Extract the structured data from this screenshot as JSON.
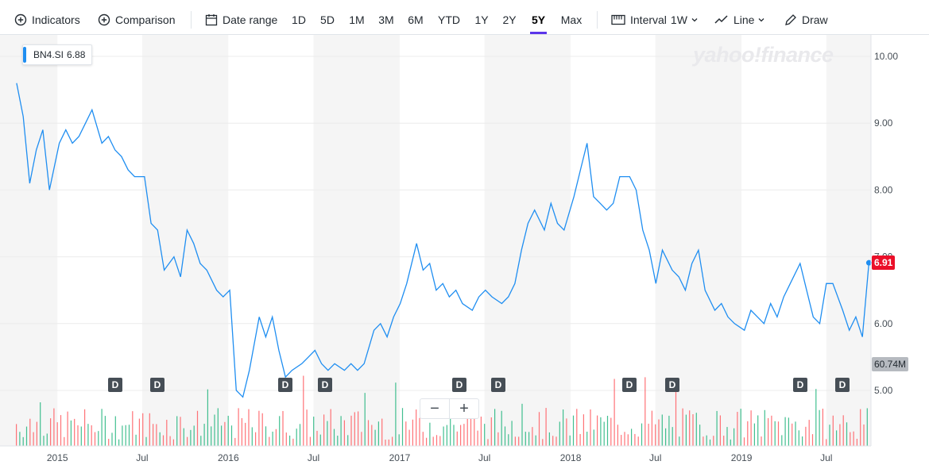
{
  "toolbar": {
    "indicators": "Indicators",
    "comparison": "Comparison",
    "date_range": "Date range",
    "ranges": [
      "1D",
      "5D",
      "1M",
      "3M",
      "6M",
      "YTD",
      "1Y",
      "2Y",
      "5Y",
      "Max"
    ],
    "active_range": "5Y",
    "interval_label": "Interval",
    "interval_value": "1W",
    "line": "Line",
    "draw": "Draw"
  },
  "legend": {
    "symbol": "BN4.SI",
    "value": "6.88"
  },
  "watermark": "yahoo!finance",
  "last_price_badge": "6.91",
  "volume_badge": "60.74M",
  "dividend_marker": "D",
  "zoom": {
    "minus": "−",
    "plus": "+"
  },
  "colors": {
    "line": "#1f8ef1",
    "up_volume": "#21b47d",
    "down_volume": "#ff5a5f",
    "last_badge": "#eb0f29",
    "accent": "#5b35ea"
  },
  "chart_data": {
    "type": "line",
    "title": "",
    "series": [
      {
        "name": "BN4.SI",
        "x": [
          "2014-10-06",
          "2014-10-20",
          "2014-11-03",
          "2014-11-17",
          "2014-12-01",
          "2014-12-15",
          "2015-01-05",
          "2015-01-19",
          "2015-02-02",
          "2015-02-16",
          "2015-03-02",
          "2015-03-16",
          "2015-04-06",
          "2015-04-20",
          "2015-05-04",
          "2015-05-18",
          "2015-06-01",
          "2015-06-15",
          "2015-07-06",
          "2015-07-20",
          "2015-08-03",
          "2015-08-17",
          "2015-09-07",
          "2015-09-21",
          "2015-10-05",
          "2015-10-19",
          "2015-11-02",
          "2015-11-16",
          "2015-12-07",
          "2015-12-21",
          "2016-01-04",
          "2016-01-18",
          "2016-02-01",
          "2016-02-15",
          "2016-03-07",
          "2016-03-21",
          "2016-04-04",
          "2016-04-18",
          "2016-05-02",
          "2016-05-16",
          "2016-06-06",
          "2016-06-20",
          "2016-07-04",
          "2016-07-18",
          "2016-08-01",
          "2016-08-15",
          "2016-09-05",
          "2016-09-19",
          "2016-10-03",
          "2016-10-17",
          "2016-11-07",
          "2016-11-21",
          "2016-12-05",
          "2016-12-19",
          "2017-01-02",
          "2017-01-16",
          "2017-02-06",
          "2017-02-20",
          "2017-03-06",
          "2017-03-20",
          "2017-04-03",
          "2017-04-17",
          "2017-05-01",
          "2017-05-15",
          "2017-06-05",
          "2017-06-19",
          "2017-07-03",
          "2017-07-17",
          "2017-08-07",
          "2017-08-21",
          "2017-09-04",
          "2017-09-18",
          "2017-10-02",
          "2017-10-16",
          "2017-11-06",
          "2017-11-20",
          "2017-12-04",
          "2017-12-18",
          "2018-01-08",
          "2018-01-22",
          "2018-02-05",
          "2018-02-19",
          "2018-03-05",
          "2018-03-19",
          "2018-04-02",
          "2018-04-16",
          "2018-05-07",
          "2018-05-21",
          "2018-06-04",
          "2018-06-18",
          "2018-07-02",
          "2018-07-16",
          "2018-08-06",
          "2018-08-20",
          "2018-09-03",
          "2018-09-17",
          "2018-10-01",
          "2018-10-15",
          "2018-11-05",
          "2018-11-19",
          "2018-12-03",
          "2018-12-17",
          "2019-01-07",
          "2019-01-21",
          "2019-02-04",
          "2019-02-18",
          "2019-03-04",
          "2019-03-18",
          "2019-04-01",
          "2019-04-15",
          "2019-05-06",
          "2019-05-20",
          "2019-06-03",
          "2019-06-17",
          "2019-07-01",
          "2019-07-15",
          "2019-08-05",
          "2019-08-19",
          "2019-09-02",
          "2019-09-16",
          "2019-09-30"
        ],
        "values": [
          9.6,
          9.1,
          8.1,
          8.6,
          8.9,
          8.0,
          8.7,
          8.9,
          8.7,
          8.8,
          9.0,
          9.2,
          8.7,
          8.8,
          8.6,
          8.5,
          8.3,
          8.2,
          8.2,
          7.5,
          7.4,
          6.8,
          7.0,
          6.7,
          7.4,
          7.2,
          6.9,
          6.8,
          6.5,
          6.4,
          6.5,
          5.0,
          4.9,
          5.3,
          6.1,
          5.8,
          6.1,
          5.6,
          5.2,
          5.3,
          5.4,
          5.5,
          5.6,
          5.4,
          5.3,
          5.4,
          5.3,
          5.4,
          5.3,
          5.4,
          5.9,
          6.0,
          5.8,
          6.1,
          6.3,
          6.6,
          7.2,
          6.8,
          6.9,
          6.5,
          6.6,
          6.4,
          6.5,
          6.3,
          6.2,
          6.4,
          6.5,
          6.4,
          6.3,
          6.4,
          6.6,
          7.1,
          7.5,
          7.7,
          7.4,
          7.8,
          7.5,
          7.4,
          7.9,
          8.3,
          8.7,
          7.9,
          7.8,
          7.7,
          7.8,
          8.2,
          8.2,
          8.0,
          7.4,
          7.1,
          6.6,
          7.1,
          6.8,
          6.7,
          6.5,
          6.9,
          7.1,
          6.5,
          6.2,
          6.3,
          6.1,
          6.0,
          5.9,
          6.2,
          6.1,
          6.0,
          6.3,
          6.1,
          6.4,
          6.6,
          6.9,
          6.5,
          6.1,
          6.0,
          6.6,
          6.6,
          6.2,
          5.9,
          6.1,
          5.8,
          6.91
        ]
      }
    ],
    "ylim": [
      4.5,
      10.3
    ],
    "y_ticks": [
      "10.00",
      "9.00",
      "8.00",
      "7.00",
      "6.00",
      "5.00"
    ],
    "x_ticks": [
      "2015",
      "Jul",
      "2016",
      "Jul",
      "2017",
      "Jul",
      "2018",
      "Jul",
      "2019",
      "Jul"
    ],
    "volume_panel": true,
    "dividend_dates": [
      "2015-05-04",
      "2015-08-03",
      "2016-05-02",
      "2016-07-25",
      "2017-05-08",
      "2017-07-31",
      "2018-05-07",
      "2018-08-06",
      "2019-05-06",
      "2019-08-05"
    ],
    "grid": true,
    "legend_position": "top-left"
  }
}
